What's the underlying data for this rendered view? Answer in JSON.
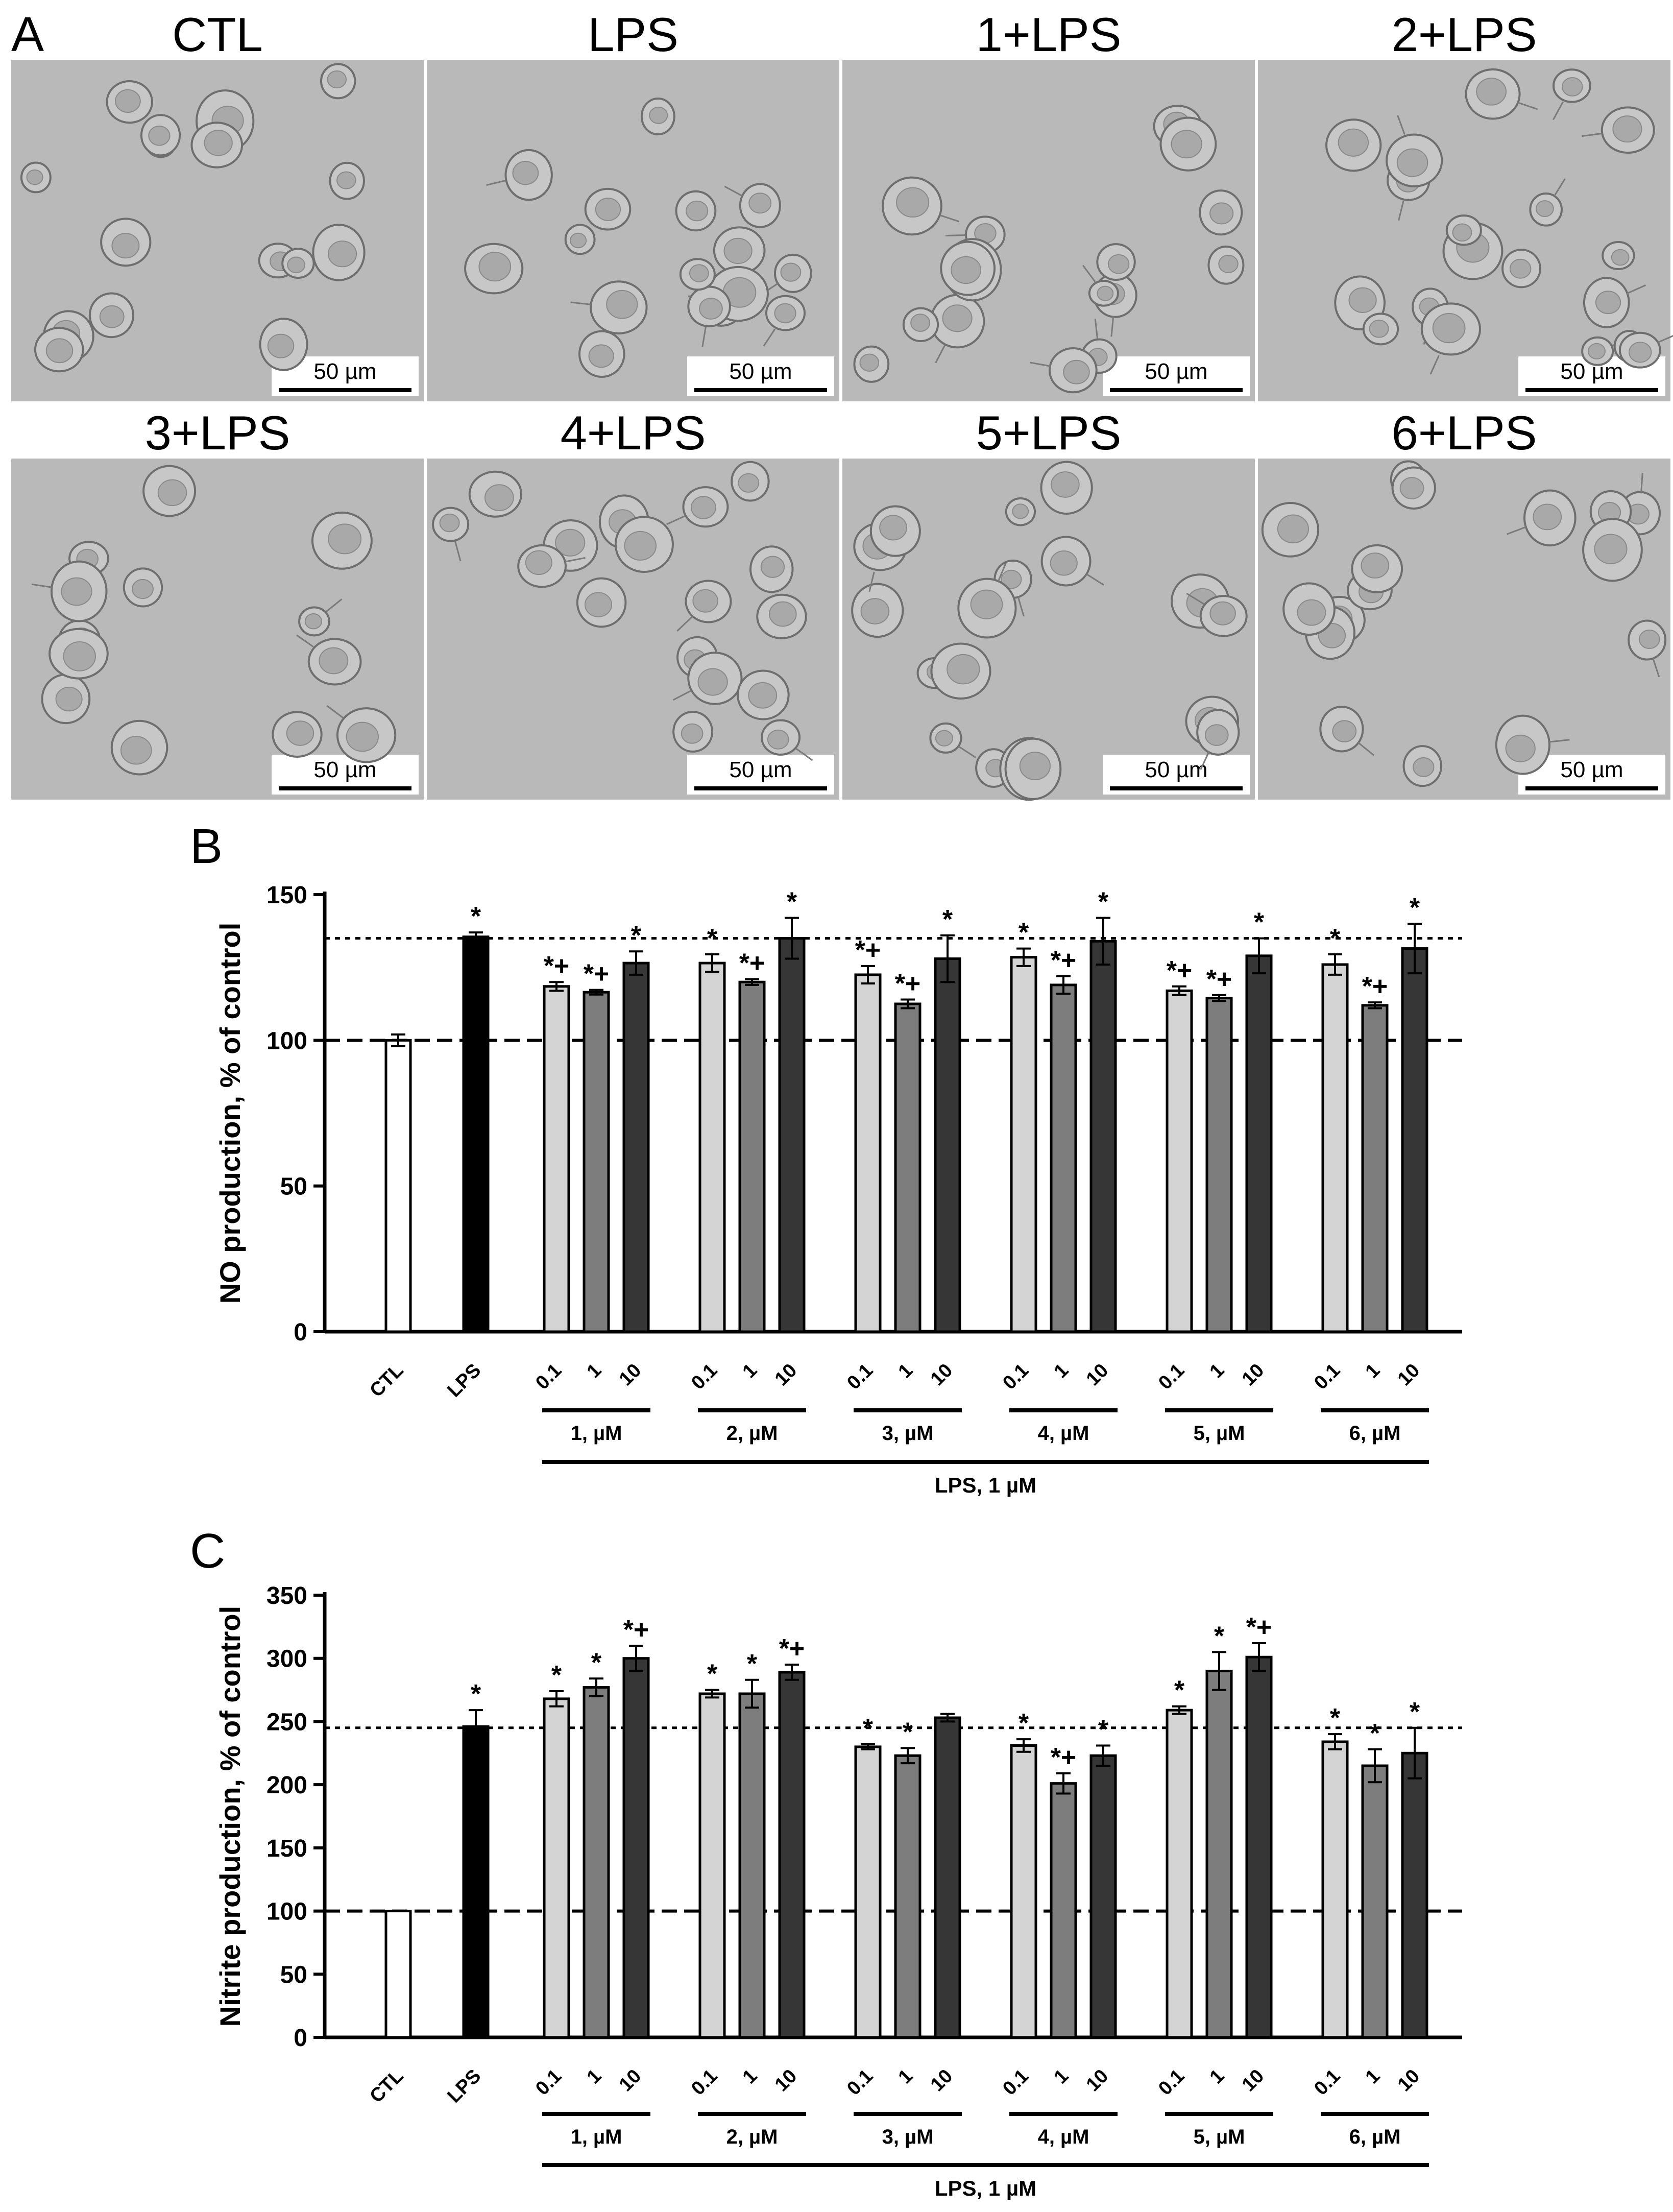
{
  "panels": {
    "a": "A",
    "b": "B",
    "c": "C"
  },
  "micrographs": [
    {
      "title": "CTL",
      "scale_bar": "50 µm"
    },
    {
      "title": "LPS",
      "scale_bar": "50 µm"
    },
    {
      "title": "1+LPS",
      "scale_bar": "50 µm"
    },
    {
      "title": "2+LPS",
      "scale_bar": "50 µm"
    },
    {
      "title": "3+LPS",
      "scale_bar": "50 µm"
    },
    {
      "title": "4+LPS",
      "scale_bar": "50 µm"
    },
    {
      "title": "5+LPS",
      "scale_bar": "50 µm"
    },
    {
      "title": "6+LPS",
      "scale_bar": "50 µm"
    }
  ],
  "colors": {
    "ctl": "#ffffff",
    "lps": "#000000",
    "dose_0_1": "#d4d4d4",
    "dose_1": "#7d7d7d",
    "dose_10": "#363636",
    "micrograph_bg": "#b9b9b9"
  },
  "chart_data": [
    {
      "type": "bar",
      "ylabel": "NO production, % of control",
      "ylim": [
        0,
        150
      ],
      "yticks": [
        "0",
        "50",
        "100",
        "150"
      ],
      "reference_lines": [
        {
          "style": "dashed",
          "value": 100
        },
        {
          "style": "dotted",
          "value": 135
        }
      ],
      "controls": [
        {
          "label": "CTL",
          "value": 100,
          "error": 2,
          "annotation": ""
        },
        {
          "label": "LPS",
          "value": 135.5,
          "error": 1.5,
          "annotation": "*"
        }
      ],
      "groups": [
        {
          "label": "1, µM",
          "bars": [
            {
              "dose": "0.1",
              "value": 118.5,
              "error": 1.5,
              "annotation": "*+"
            },
            {
              "dose": "1",
              "value": 116.5,
              "error": 0.8,
              "annotation": "*+"
            },
            {
              "dose": "10",
              "value": 126.5,
              "error": 4,
              "annotation": "*"
            }
          ]
        },
        {
          "label": "2, µM",
          "bars": [
            {
              "dose": "0.1",
              "value": 126.5,
              "error": 3,
              "annotation": "*"
            },
            {
              "dose": "1",
              "value": 120,
              "error": 1,
              "annotation": "*+"
            },
            {
              "dose": "10",
              "value": 135,
              "error": 7,
              "annotation": "*"
            }
          ]
        },
        {
          "label": "3, µM",
          "bars": [
            {
              "dose": "0.1",
              "value": 122.5,
              "error": 3,
              "annotation": "*+"
            },
            {
              "dose": "1",
              "value": 112.5,
              "error": 1.5,
              "annotation": "*+"
            },
            {
              "dose": "10",
              "value": 128,
              "error": 8,
              "annotation": "*"
            }
          ]
        },
        {
          "label": "4, µM",
          "bars": [
            {
              "dose": "0.1",
              "value": 128.5,
              "error": 3,
              "annotation": "*"
            },
            {
              "dose": "1",
              "value": 119,
              "error": 3,
              "annotation": "*+"
            },
            {
              "dose": "10",
              "value": 134,
              "error": 8,
              "annotation": "*"
            }
          ]
        },
        {
          "label": "5, µM",
          "bars": [
            {
              "dose": "0.1",
              "value": 117,
              "error": 1.5,
              "annotation": "*+"
            },
            {
              "dose": "1",
              "value": 114.5,
              "error": 1,
              "annotation": "*+"
            },
            {
              "dose": "10",
              "value": 129,
              "error": 6,
              "annotation": "*"
            }
          ]
        },
        {
          "label": "6, µM",
          "bars": [
            {
              "dose": "0.1",
              "value": 126,
              "error": 3.5,
              "annotation": "*"
            },
            {
              "dose": "1",
              "value": 112,
              "error": 1,
              "annotation": "*+"
            },
            {
              "dose": "10",
              "value": 131.5,
              "error": 8.5,
              "annotation": "*"
            }
          ]
        }
      ],
      "bracket_label": "LPS, 1 µM"
    },
    {
      "type": "bar",
      "ylabel": "Nitrite production, % of control",
      "ylim": [
        0,
        350
      ],
      "yticks": [
        "0",
        "50",
        "100",
        "150",
        "200",
        "250",
        "300",
        "350"
      ],
      "reference_lines": [
        {
          "style": "dashed",
          "value": 100
        },
        {
          "style": "dotted",
          "value": 245
        }
      ],
      "controls": [
        {
          "label": "CTL",
          "value": 100,
          "error": 0,
          "annotation": ""
        },
        {
          "label": "LPS",
          "value": 246,
          "error": 13,
          "annotation": "*"
        }
      ],
      "groups": [
        {
          "label": "1, µM",
          "bars": [
            {
              "dose": "0.1",
              "value": 268,
              "error": 6,
              "annotation": "*"
            },
            {
              "dose": "1",
              "value": 277,
              "error": 7,
              "annotation": "*"
            },
            {
              "dose": "10",
              "value": 300,
              "error": 10,
              "annotation": "*+"
            }
          ]
        },
        {
          "label": "2, µM",
          "bars": [
            {
              "dose": "0.1",
              "value": 272,
              "error": 3,
              "annotation": "*"
            },
            {
              "dose": "1",
              "value": 272,
              "error": 11,
              "annotation": "*"
            },
            {
              "dose": "10",
              "value": 289,
              "error": 6,
              "annotation": "*+"
            }
          ]
        },
        {
          "label": "3, µM",
          "bars": [
            {
              "dose": "0.1",
              "value": 230,
              "error": 2,
              "annotation": "*"
            },
            {
              "dose": "1",
              "value": 223,
              "error": 6,
              "annotation": "*"
            },
            {
              "dose": "10",
              "value": 253,
              "error": 3,
              "annotation": ""
            }
          ]
        },
        {
          "label": "4, µM",
          "bars": [
            {
              "dose": "0.1",
              "value": 231,
              "error": 5,
              "annotation": "*"
            },
            {
              "dose": "1",
              "value": 201,
              "error": 8,
              "annotation": "*+"
            },
            {
              "dose": "10",
              "value": 223,
              "error": 8,
              "annotation": "*"
            }
          ]
        },
        {
          "label": "5, µM",
          "bars": [
            {
              "dose": "0.1",
              "value": 259,
              "error": 3,
              "annotation": "*"
            },
            {
              "dose": "1",
              "value": 290,
              "error": 15,
              "annotation": "*"
            },
            {
              "dose": "10",
              "value": 301,
              "error": 11,
              "annotation": "*+"
            }
          ]
        },
        {
          "label": "6, µM",
          "bars": [
            {
              "dose": "0.1",
              "value": 234,
              "error": 6,
              "annotation": "*"
            },
            {
              "dose": "1",
              "value": 215,
              "error": 13,
              "annotation": "*"
            },
            {
              "dose": "10",
              "value": 225,
              "error": 20,
              "annotation": "*"
            }
          ]
        }
      ],
      "bracket_label": "LPS, 1 µM"
    }
  ]
}
